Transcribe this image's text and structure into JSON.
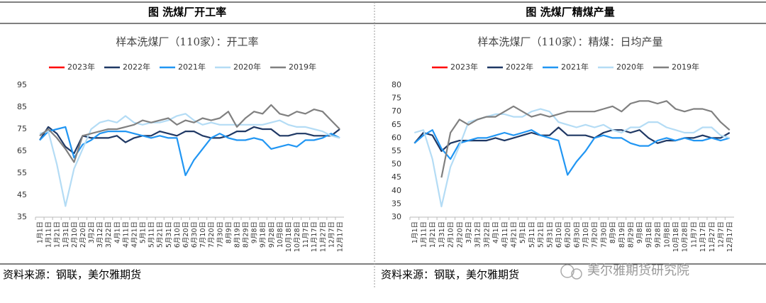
{
  "headers": [
    "图  洗煤厂开工率",
    "图    洗煤厂精煤产量"
  ],
  "chart_data": [
    {
      "type": "line",
      "title": "样本洗煤厂（110家）：开工率",
      "categories": [
        "1月1日",
        "1月11日",
        "1月21日",
        "1月31日",
        "2月10日",
        "2月20日",
        "3月2日",
        "3月12日",
        "3月22日",
        "4月1日",
        "4月11日",
        "4月21日",
        "5月1日",
        "5月11日",
        "5月21日",
        "5月31日",
        "6月10日",
        "6月20日",
        "6月30日",
        "7月10日",
        "7月20日",
        "7月30日",
        "8月9日",
        "8月19日",
        "8月29日",
        "9月8日",
        "9月18日",
        "9月28日",
        "10月8日",
        "10月18日",
        "10月28日",
        "11月7日",
        "11月17日",
        "11月27日",
        "12月7日",
        "12月17日"
      ],
      "series": [
        {
          "name": "2023年",
          "color": "#ff0000",
          "values": [
            null,
            null,
            null,
            null,
            null,
            null,
            null,
            null,
            null,
            null,
            null,
            null,
            null,
            null,
            null,
            null,
            null,
            null,
            null,
            null,
            null,
            null,
            null,
            null,
            null,
            null,
            null,
            null,
            null,
            null,
            null,
            null,
            null,
            null,
            null,
            null
          ]
        },
        {
          "name": "2022年",
          "color": "#1f3864",
          "values": [
            70,
            76,
            73,
            67,
            64,
            72,
            71,
            71,
            71,
            72,
            69,
            71,
            72,
            72,
            74,
            73,
            72,
            74,
            74,
            72,
            71,
            71,
            72,
            74,
            74,
            76,
            75,
            75,
            72,
            72,
            73,
            73,
            72,
            72,
            72,
            75
          ]
        },
        {
          "name": "2021年",
          "color": "#2196f3",
          "values": [
            70,
            74,
            75,
            76,
            62,
            68,
            70,
            73,
            74,
            74,
            74,
            73,
            72,
            71,
            72,
            71,
            71,
            54,
            61,
            66,
            71,
            73,
            71,
            70,
            70,
            71,
            70,
            66,
            67,
            68,
            67,
            70,
            70,
            71,
            73,
            71
          ]
        },
        {
          "name": "2020年",
          "color": "#b4dcf5",
          "values": [
            73,
            74,
            59,
            40,
            57,
            66,
            75,
            78,
            79,
            78,
            81,
            78,
            77,
            78,
            78,
            79,
            81,
            82,
            79,
            77,
            78,
            77,
            77,
            77,
            77,
            77,
            77,
            78,
            79,
            77,
            76,
            76,
            75,
            74,
            72,
            71
          ]
        },
        {
          "name": "2019年",
          "color": "#808080",
          "values": [
            72,
            75,
            71,
            66,
            60,
            72,
            73,
            74,
            75,
            75,
            76,
            77,
            79,
            78,
            79,
            80,
            77,
            79,
            78,
            80,
            79,
            80,
            83,
            76,
            80,
            83,
            82,
            86,
            82,
            81,
            83,
            82,
            84,
            83,
            79,
            75
          ]
        }
      ],
      "ylim": [
        35,
        95
      ],
      "yticks": [
        35,
        45,
        55,
        65,
        75,
        85,
        95
      ]
    },
    {
      "type": "line",
      "title": "样本洗煤厂（110家）：精煤：日均产量",
      "categories": [
        "1月1日",
        "1月11日",
        "1月21日",
        "1月31日",
        "2月10日",
        "2月20日",
        "3月2日",
        "3月12日",
        "3月22日",
        "4月1日",
        "4月11日",
        "4月21日",
        "5月1日",
        "5月11日",
        "5月21日",
        "5月31日",
        "6月10日",
        "6月20日",
        "6月30日",
        "7月10日",
        "7月20日",
        "7月30日",
        "8月9日",
        "8月19日",
        "8月29日",
        "9月8日",
        "9月18日",
        "9月28日",
        "10月8日",
        "10月18日",
        "10月28日",
        "11月7日",
        "11月17日",
        "11月27日",
        "12月7日",
        "12月17日"
      ],
      "series": [
        {
          "name": "2023年",
          "color": "#ff0000",
          "values": [
            null,
            null,
            null,
            null,
            null,
            null,
            null,
            null,
            null,
            null,
            null,
            null,
            null,
            null,
            null,
            null,
            null,
            null,
            null,
            null,
            null,
            null,
            null,
            null,
            null,
            null,
            null,
            null,
            null,
            null,
            null,
            null,
            null,
            null,
            null,
            null
          ]
        },
        {
          "name": "2022年",
          "color": "#1f3864",
          "values": [
            58,
            62,
            61,
            55,
            58,
            59,
            59,
            59,
            59,
            60,
            59,
            60,
            61,
            62,
            61,
            61,
            64,
            61,
            61,
            61,
            60,
            62,
            63,
            63,
            62,
            63,
            60,
            58,
            59,
            59,
            60,
            60,
            61,
            60,
            60,
            62
          ]
        },
        {
          "name": "2021年",
          "color": "#2196f3",
          "values": [
            58,
            61,
            63,
            56,
            52,
            58,
            59,
            60,
            60,
            61,
            62,
            61,
            62,
            63,
            61,
            60,
            59,
            46,
            51,
            55,
            60,
            61,
            60,
            60,
            58,
            57,
            57,
            59,
            60,
            59,
            60,
            59,
            59,
            60,
            59,
            60
          ]
        },
        {
          "name": "2020年",
          "color": "#b4dcf5",
          "values": [
            62,
            63,
            52,
            34,
            49,
            57,
            66,
            67,
            68,
            69,
            69,
            68,
            68,
            70,
            71,
            70,
            66,
            65,
            64,
            65,
            64,
            65,
            63,
            62,
            64,
            64,
            66,
            66,
            64,
            63,
            62,
            62,
            64,
            64,
            61,
            60
          ]
        },
        {
          "name": "2019年",
          "color": "#808080",
          "values": [
            null,
            null,
            null,
            45,
            62,
            67,
            65,
            67,
            68,
            68,
            70,
            72,
            70,
            68,
            69,
            68,
            69,
            70,
            70,
            70,
            70,
            71,
            72,
            70,
            73,
            74,
            74,
            73,
            74,
            71,
            70,
            71,
            71,
            70,
            66,
            63
          ]
        }
      ],
      "ylim": [
        30,
        80
      ],
      "yticks": [
        30,
        35,
        40,
        45,
        50,
        55,
        60,
        65,
        70,
        75,
        80
      ]
    }
  ],
  "sources": [
    "资料来源：钢联，美尔雅期货",
    "资料来源：钢联，美尔雅期货"
  ],
  "watermark": "美尔雅期货研究院"
}
